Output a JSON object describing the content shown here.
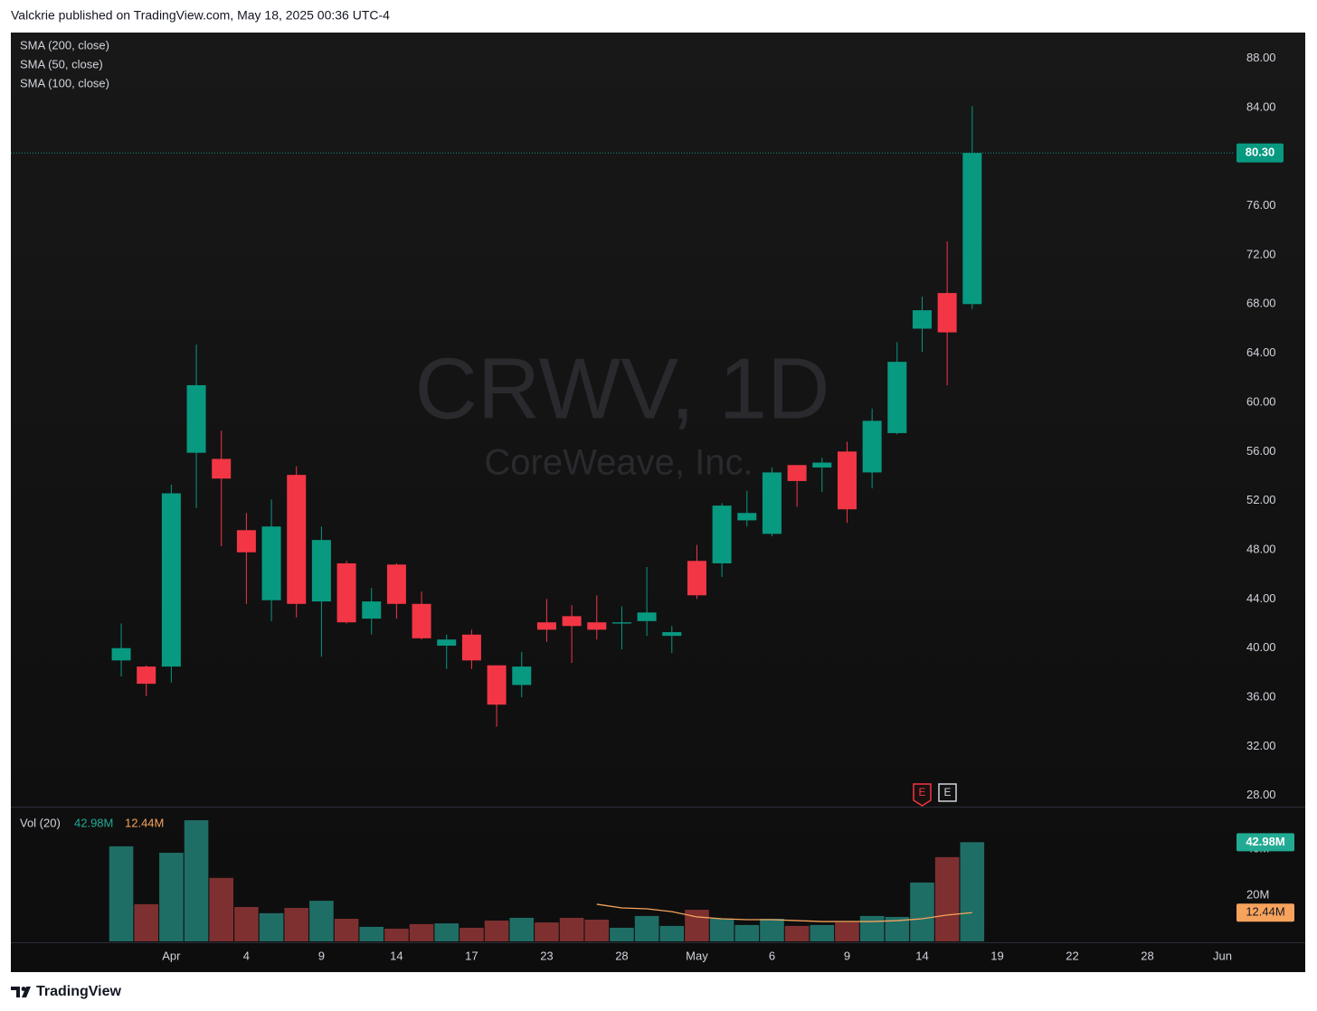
{
  "header": "Valckrie published on TradingView.com, May 18, 2025 00:36 UTC-4",
  "footer": "TradingView",
  "chart_data": [
    {
      "type": "candlestick",
      "watermark": "CRWV, 1D",
      "watermark_subtitle": "CoreWeave, Inc.",
      "indicators": [
        "SMA (200, close)",
        "SMA (50, close)",
        "SMA (100, close)"
      ],
      "categories": [
        null,
        null,
        "Apr",
        null,
        null,
        "4",
        null,
        null,
        "9",
        null,
        null,
        "14",
        null,
        null,
        "17",
        null,
        null,
        "23",
        null,
        null,
        "28",
        null,
        null,
        "May",
        null,
        null,
        "6",
        null,
        null,
        "9",
        null,
        null,
        "14",
        null,
        null,
        "19",
        null,
        null,
        "22",
        null,
        null,
        "28",
        null,
        null,
        "Jun"
      ],
      "open": [
        39.0,
        38.5,
        38.5,
        55.9,
        55.4,
        49.6,
        43.9,
        54.1,
        43.8,
        46.9,
        42.4,
        46.8,
        43.6,
        40.2,
        41.1,
        38.6,
        37.0,
        42.1,
        42.6,
        42.1,
        42.0,
        42.2,
        41.0,
        47.1,
        46.9,
        50.4,
        49.3,
        54.9,
        54.7,
        56.0,
        54.3,
        57.5,
        66.0,
        68.9,
        68.0,
        null,
        null,
        null,
        null,
        null,
        null,
        null,
        null,
        null,
        null
      ],
      "high": [
        42.0,
        38.6,
        53.3,
        64.7,
        57.7,
        51.0,
        52.1,
        54.8,
        49.9,
        47.1,
        44.9,
        46.9,
        44.6,
        41.1,
        41.5,
        38.6,
        39.7,
        44.0,
        43.5,
        44.3,
        43.4,
        46.6,
        41.8,
        48.4,
        51.8,
        52.8,
        54.7,
        54.9,
        55.5,
        56.8,
        59.5,
        64.9,
        68.6,
        73.1,
        84.1,
        null,
        null,
        null,
        null,
        null,
        null,
        null,
        null,
        null,
        null
      ],
      "low": [
        37.7,
        36.1,
        37.2,
        51.4,
        48.3,
        43.6,
        42.2,
        42.5,
        39.3,
        42.0,
        41.1,
        42.4,
        40.7,
        38.3,
        38.3,
        33.6,
        36.0,
        40.5,
        38.8,
        40.7,
        39.9,
        41.0,
        39.6,
        44.0,
        45.8,
        49.9,
        49.1,
        51.5,
        52.7,
        50.2,
        53.0,
        57.4,
        64.1,
        61.4,
        67.6,
        null,
        null,
        null,
        null,
        null,
        null,
        null,
        null,
        null,
        null
      ],
      "close": [
        40.0,
        37.1,
        52.6,
        61.4,
        53.8,
        47.8,
        49.9,
        43.6,
        48.8,
        42.1,
        43.8,
        43.6,
        40.8,
        40.7,
        39.0,
        35.4,
        38.5,
        41.5,
        41.8,
        41.5,
        42.1,
        42.9,
        41.3,
        44.3,
        51.6,
        51.0,
        54.3,
        53.6,
        55.1,
        51.3,
        58.5,
        63.3,
        67.5,
        65.7,
        80.3,
        null,
        null,
        null,
        null,
        null,
        null,
        null,
        null,
        null,
        null
      ],
      "last_price_label": "80.30",
      "up_color": "#089981",
      "down_color": "#f23645",
      "earnings": [
        "E",
        "E"
      ],
      "ylim": [
        27.1,
        90.1
      ],
      "yticks": [
        {
          "value": 28,
          "label": "28.00"
        },
        {
          "value": 32,
          "label": "32.00"
        },
        {
          "value": 36,
          "label": "36.00"
        },
        {
          "value": 40,
          "label": "40.00"
        },
        {
          "value": 44,
          "label": "44.00"
        },
        {
          "value": 48,
          "label": "48.00"
        },
        {
          "value": 52,
          "label": "52.00"
        },
        {
          "value": 56,
          "label": "56.00"
        },
        {
          "value": 60,
          "label": "60.00"
        },
        {
          "value": 64,
          "label": "64.00"
        },
        {
          "value": 68,
          "label": "68.00"
        },
        {
          "value": 72,
          "label": "72.00"
        },
        {
          "value": 76,
          "label": "76.00"
        },
        {
          "value": 80,
          "label": "80.00"
        },
        {
          "value": 84,
          "label": "84.00"
        },
        {
          "value": 88,
          "label": "88.00"
        }
      ],
      "grid": false
    },
    {
      "type": "volume",
      "legend": "Vol (20)",
      "values": [
        41200000,
        16100000,
        38400000,
        52500000,
        27500000,
        14900000,
        12200000,
        14500000,
        17600000,
        9800000,
        6300000,
        5500000,
        7500000,
        7800000,
        5900000,
        9000000,
        10200000,
        8200000,
        10200000,
        9400000,
        5900000,
        11000000,
        6700000,
        13700000,
        9800000,
        7100000,
        9800000,
        6700000,
        7100000,
        8200000,
        11000000,
        10600000,
        25500000,
        36500000,
        42980000,
        null,
        null,
        null,
        null,
        null,
        null,
        null,
        null,
        null,
        null
      ],
      "last_value_label": "42.98M",
      "up_color": "#1f6e66",
      "down_color": "#7e3030",
      "label_color": "#22ab94",
      "sma": {
        "values": [
          null,
          null,
          null,
          null,
          null,
          null,
          null,
          null,
          null,
          null,
          null,
          null,
          null,
          null,
          null,
          null,
          null,
          null,
          null,
          16100000,
          14500000,
          14100000,
          12900000,
          10600000,
          9800000,
          9400000,
          9400000,
          9000000,
          8600000,
          8600000,
          8600000,
          9000000,
          9800000,
          11400000,
          12440000,
          null,
          null,
          null,
          null,
          null,
          null,
          null,
          null,
          null,
          null
        ],
        "last_value_label": "12.44M",
        "color": "#f7a35c"
      },
      "ylim": [
        0,
        58400000
      ],
      "yticks": [
        {
          "value": 20000000,
          "label": "20M"
        },
        {
          "value": 40000000,
          "label": "40M"
        }
      ]
    }
  ]
}
